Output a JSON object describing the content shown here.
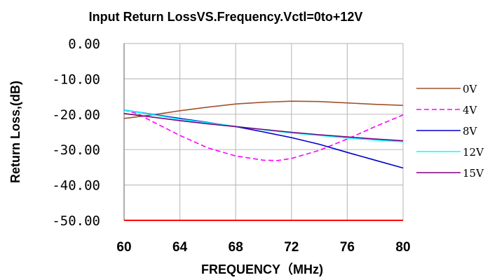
{
  "chart_data": {
    "type": "line",
    "title": "Input Return LossVS.Frequency.Vctl=0to+12V",
    "xlabel": "FREQUENCY（MHz)",
    "ylabel": "Return Loss,(dB)",
    "xlim": [
      60,
      80
    ],
    "ylim": [
      -50,
      0
    ],
    "xticks": [
      "60",
      "64",
      "68",
      "72",
      "76",
      "80"
    ],
    "yticks": [
      "0.00",
      "-10.00",
      "-20.00",
      "-30.00",
      "-40.00",
      "-50.00"
    ],
    "grid": true,
    "legend_position": "right",
    "series": [
      {
        "name": "0V",
        "color": "#A0522D",
        "dash": "solid",
        "x": [
          60,
          62,
          64,
          66,
          68,
          70,
          72,
          74,
          76,
          78,
          80
        ],
        "y": [
          -21.2,
          -20.2,
          -19.0,
          -18.0,
          -17.1,
          -16.6,
          -16.3,
          -16.4,
          -16.8,
          -17.2,
          -17.5
        ]
      },
      {
        "name": "4V",
        "color": "#FF00FF",
        "dash": "dashed",
        "x": [
          60,
          61,
          62,
          64,
          66,
          68,
          70,
          71,
          72,
          74,
          76,
          78,
          80
        ],
        "y": [
          -18.8,
          -19.9,
          -22.0,
          -26.0,
          -29.5,
          -31.8,
          -33.0,
          -33.1,
          -32.5,
          -30.2,
          -27.0,
          -23.5,
          -20.2
        ]
      },
      {
        "name": "8V",
        "color": "#0000CC",
        "dash": "solid",
        "x": [
          60,
          62,
          64,
          66,
          68,
          70,
          72,
          74,
          76,
          78,
          80
        ],
        "y": [
          -18.8,
          -20.0,
          -21.2,
          -22.3,
          -23.5,
          -25.0,
          -26.6,
          -28.5,
          -30.8,
          -33.0,
          -35.2
        ]
      },
      {
        "name": "12V",
        "color": "#00FFFF",
        "dash": "solid",
        "x": [
          60,
          62,
          64,
          66,
          68,
          70,
          72,
          74,
          76,
          78,
          80
        ],
        "y": [
          -18.8,
          -20.1,
          -21.4,
          -22.4,
          -23.4,
          -24.4,
          -25.3,
          -26.0,
          -26.7,
          -27.3,
          -27.8
        ]
      },
      {
        "name": "15V",
        "color": "#7F007F",
        "dash": "solid",
        "x": [
          60,
          62,
          64,
          66,
          68,
          70,
          72,
          74,
          76,
          78,
          80
        ],
        "y": [
          -19.8,
          -20.8,
          -21.8,
          -22.7,
          -23.5,
          -24.3,
          -25.1,
          -25.8,
          -26.4,
          -27.0,
          -27.5
        ]
      }
    ]
  }
}
